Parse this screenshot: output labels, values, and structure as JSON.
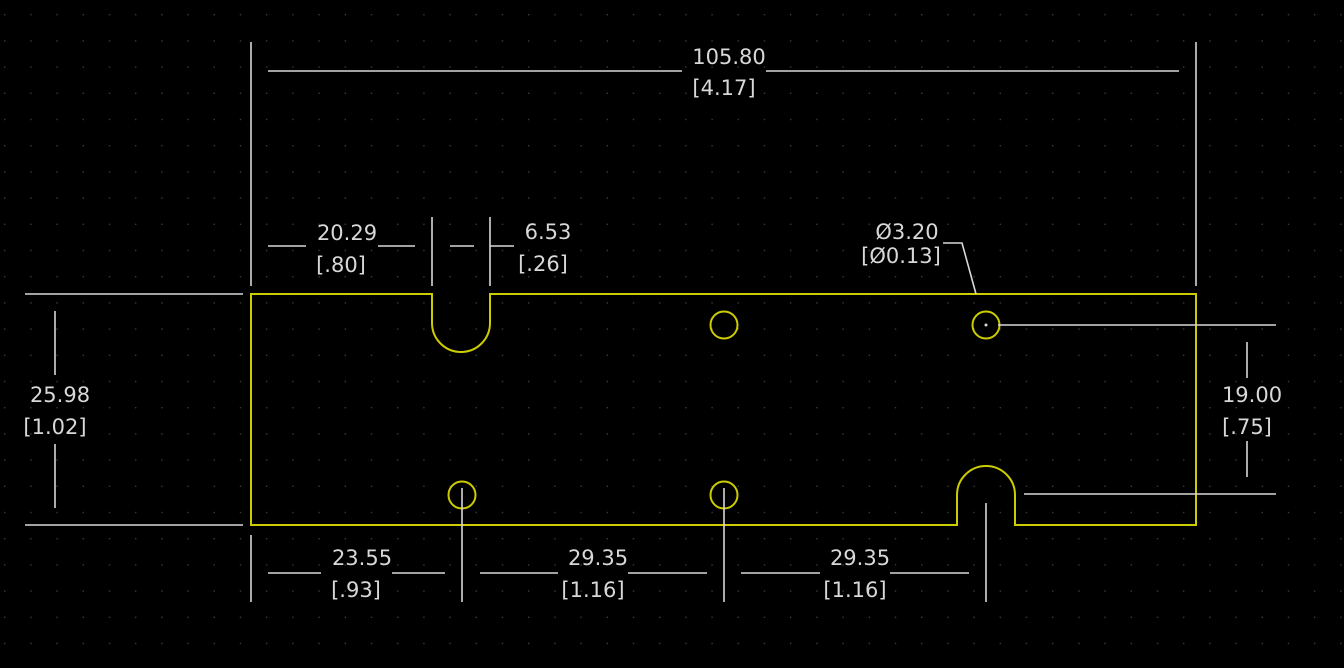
{
  "colors": {
    "background": "#000000",
    "board_edge": "#cccc00",
    "dimension": "#d8d8d8",
    "grid": "#3a3a3a"
  },
  "dimensions": {
    "overall_width": {
      "mm": "105.80",
      "inch": "[4.17]"
    },
    "slot_left_offset": {
      "mm": "20.29",
      "inch": "[.80]"
    },
    "slot_width": {
      "mm": "6.53",
      "inch": "[.26]"
    },
    "hole_diameter": {
      "mm": "Ø3.20",
      "inch": "[Ø0.13]"
    },
    "overall_height": {
      "mm": "25.98",
      "inch": "[1.02]"
    },
    "hole_vertical_spacing": {
      "mm": "19.00",
      "inch": "[.75]"
    },
    "bottom_spacing_1": {
      "mm": "23.55",
      "inch": "[.93]"
    },
    "bottom_spacing_2": {
      "mm": "29.35",
      "inch": "[1.16]"
    },
    "bottom_spacing_3": {
      "mm": "29.35",
      "inch": "[1.16]"
    }
  }
}
